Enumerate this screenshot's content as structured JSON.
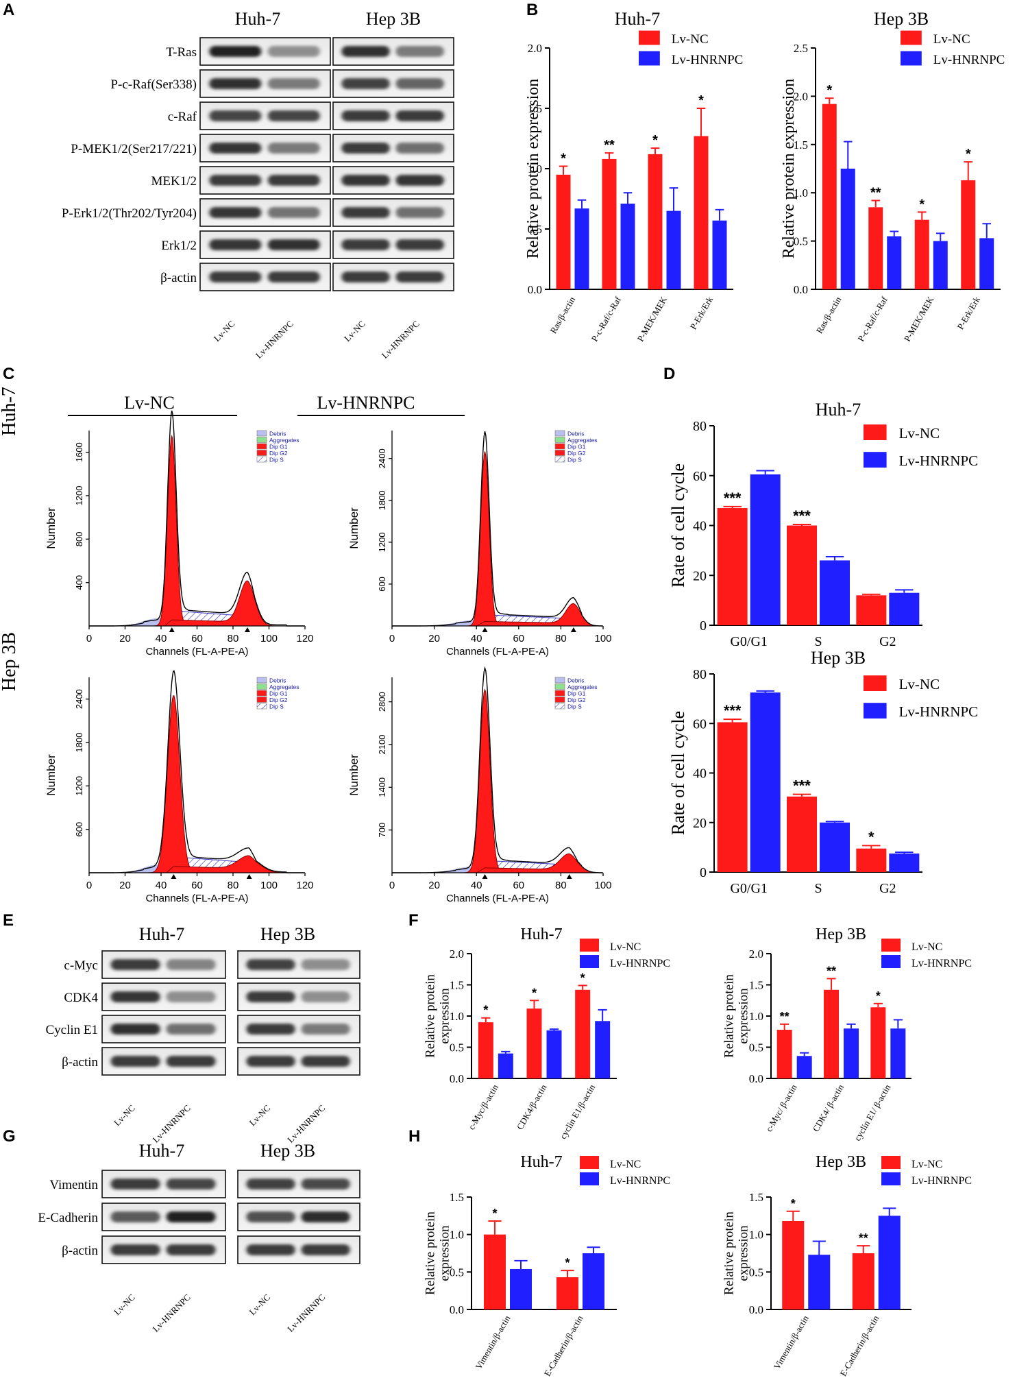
{
  "panel_letters": [
    "A",
    "B",
    "C",
    "D",
    "E",
    "F",
    "G",
    "H"
  ],
  "colors": {
    "nc": "#ff1a1a",
    "hn": "#1f1fff",
    "axis": "#000000",
    "band": "#1c1c1c",
    "hatch": "#3b3bc4",
    "debris": "#b9bfee",
    "aggr": "#8fe08f"
  },
  "blots": [
    {
      "id": "A",
      "cells": [
        "Huh-7",
        "Hep 3B"
      ],
      "lanes": [
        "Lv-NC",
        "Lv-HNRNPC"
      ],
      "rows": [
        {
          "label": "T-Ras",
          "int": [
            [
              0.98,
              0.45
            ],
            [
              0.9,
              0.55
            ]
          ]
        },
        {
          "label": "P-c-Raf(Ser338)",
          "int": [
            [
              0.9,
              0.55
            ],
            [
              0.82,
              0.65
            ]
          ]
        },
        {
          "label": "c-Raf",
          "int": [
            [
              0.8,
              0.8
            ],
            [
              0.85,
              0.85
            ]
          ]
        },
        {
          "label": "P-MEK1/2(Ser217/221)",
          "int": [
            [
              0.88,
              0.55
            ],
            [
              0.85,
              0.6
            ]
          ]
        },
        {
          "label": "MEK1/2",
          "int": [
            [
              0.85,
              0.85
            ],
            [
              0.88,
              0.88
            ]
          ]
        },
        {
          "label": "P-Erk1/2(Thr202/Tyr204)",
          "int": [
            [
              0.88,
              0.58
            ],
            [
              0.85,
              0.6
            ]
          ]
        },
        {
          "label": "Erk1/2",
          "int": [
            [
              0.88,
              0.9
            ],
            [
              0.85,
              0.85
            ]
          ]
        },
        {
          "label": "β-actin",
          "int": [
            [
              0.85,
              0.85
            ],
            [
              0.85,
              0.85
            ]
          ]
        }
      ]
    },
    {
      "id": "E",
      "cells": [
        "Huh-7",
        "Hep 3B"
      ],
      "lanes": [
        "Lv-NC",
        "Lv-HNRNPC"
      ],
      "rows": [
        {
          "label": "c-Myc",
          "int": [
            [
              0.85,
              0.5
            ],
            [
              0.82,
              0.45
            ]
          ]
        },
        {
          "label": "CDK4",
          "int": [
            [
              0.88,
              0.45
            ],
            [
              0.85,
              0.45
            ]
          ]
        },
        {
          "label": "Cyclin E1",
          "int": [
            [
              0.9,
              0.6
            ],
            [
              0.85,
              0.55
            ]
          ]
        },
        {
          "label": "β-actin",
          "int": [
            [
              0.85,
              0.85
            ],
            [
              0.85,
              0.85
            ]
          ]
        }
      ]
    },
    {
      "id": "G",
      "cells": [
        "Huh-7",
        "Hep 3B"
      ],
      "lanes": [
        "Lv-NC",
        "Lv-HNRNPC"
      ],
      "rows": [
        {
          "label": "Vimentin",
          "int": [
            [
              0.85,
              0.8
            ],
            [
              0.82,
              0.78
            ]
          ]
        },
        {
          "label": "E-Cadherin",
          "int": [
            [
              0.7,
              0.98
            ],
            [
              0.75,
              0.92
            ]
          ]
        },
        {
          "label": "β-actin",
          "int": [
            [
              0.85,
              0.85
            ],
            [
              0.85,
              0.85
            ]
          ]
        }
      ]
    }
  ],
  "flow": {
    "groups": [
      "Lv-NC",
      "Lv-HNRNPC"
    ],
    "rows": [
      "Huh-7",
      "Hep 3B"
    ],
    "ylabel": "Number",
    "xlabel": "Channels (FL-A-PE-A)",
    "legend": [
      "Debris",
      "Aggregates",
      "Dip G1",
      "Dip G2",
      "Dip S"
    ],
    "plots": [
      {
        "xmax": 120,
        "xticks": [
          0,
          20,
          40,
          60,
          80,
          100,
          120
        ],
        "ymax": 1800,
        "yticks": [
          400,
          800,
          1200,
          1600
        ],
        "peak": 1750,
        "g1": 46,
        "g2": 88,
        "g2h": 380,
        "s": 140,
        "w": 2.4
      },
      {
        "xmax": 100,
        "xticks": [
          0,
          20,
          40,
          60,
          80,
          100
        ],
        "ymax": 2800,
        "yticks": [
          600,
          1200,
          1800,
          2400
        ],
        "peak": 2500,
        "g1": 44,
        "g2": 86,
        "g2h": 280,
        "s": 160,
        "w": 2.0
      },
      {
        "xmax": 120,
        "xticks": [
          0,
          20,
          40,
          60,
          80,
          100,
          120
        ],
        "ymax": 2700,
        "yticks": [
          600,
          1200,
          1800,
          2400
        ],
        "peak": 2450,
        "g1": 47,
        "g2": 89,
        "g2h": 180,
        "s": 220,
        "w": 3.4
      },
      {
        "xmax": 100,
        "xticks": [
          0,
          20,
          40,
          60,
          80,
          100
        ],
        "ymax": 3200,
        "yticks": [
          700,
          1400,
          2100,
          2800
        ],
        "peak": 3000,
        "g1": 44,
        "g2": 84,
        "g2h": 260,
        "s": 200,
        "w": 2.4
      }
    ]
  },
  "chart_data": [
    {
      "panel": "B",
      "type": "bar",
      "title": "Huh-7",
      "ylabel": "Relative protein expression",
      "ylim": [
        0,
        2.0
      ],
      "yticks": [
        "0.0",
        "0.5",
        "1.0",
        "1.5",
        "2.0"
      ],
      "categories": [
        "Ras/β-actin",
        "P-c-Raf/c-Raf",
        "P-MEK/MEK",
        "P-Erk/Erk"
      ],
      "series": [
        {
          "name": "Lv-NC",
          "values": [
            0.95,
            1.08,
            1.12,
            1.27
          ],
          "errors": [
            0.07,
            0.05,
            0.05,
            0.23
          ]
        },
        {
          "name": "Lv-HNRNPC",
          "values": [
            0.67,
            0.71,
            0.65,
            0.57
          ],
          "errors": [
            0.07,
            0.09,
            0.19,
            0.09
          ]
        }
      ],
      "sig": [
        "*",
        "**",
        "*",
        "*"
      ]
    },
    {
      "panel": "B",
      "type": "bar",
      "title": "Hep 3B",
      "ylabel": "Relative protein expression",
      "ylim": [
        0,
        2.5
      ],
      "yticks": [
        "0.0",
        "0.5",
        "1.0",
        "1.5",
        "2.0",
        "2.5"
      ],
      "categories": [
        "Ras/β-actin",
        "P-c-Raf/c-Raf",
        "P-MEK/MEK",
        "P-Erk/Erk"
      ],
      "series": [
        {
          "name": "Lv-NC",
          "values": [
            1.92,
            0.85,
            0.72,
            1.13
          ],
          "errors": [
            0.06,
            0.07,
            0.08,
            0.19
          ]
        },
        {
          "name": "Lv-HNRNPC",
          "values": [
            1.25,
            0.55,
            0.5,
            0.53
          ],
          "errors": [
            0.28,
            0.05,
            0.08,
            0.15
          ]
        }
      ],
      "sig": [
        "*",
        "**",
        "*",
        "*"
      ]
    },
    {
      "panel": "D",
      "type": "bar",
      "title": "Huh-7",
      "ylabel": "Rate of cell cycle",
      "ylim": [
        0,
        80
      ],
      "yticks": [
        "0",
        "20",
        "40",
        "60",
        "80"
      ],
      "categories": [
        "G0/G1",
        "S",
        "G2"
      ],
      "series": [
        {
          "name": "Lv-NC",
          "values": [
            47,
            40,
            12
          ],
          "errors": [
            0.6,
            0.4,
            0.4
          ]
        },
        {
          "name": "Lv-HNRNPC",
          "values": [
            60.5,
            26,
            13
          ],
          "errors": [
            1.5,
            1.5,
            1.2
          ]
        }
      ],
      "sig": [
        "***",
        "***",
        ""
      ]
    },
    {
      "panel": "D",
      "type": "bar",
      "title": "Hep 3B",
      "ylabel": "Rate of cell cycle",
      "ylim": [
        0,
        80
      ],
      "yticks": [
        "0",
        "20",
        "40",
        "60",
        "80"
      ],
      "categories": [
        "G0/G1",
        "S",
        "G2"
      ],
      "series": [
        {
          "name": "Lv-NC",
          "values": [
            60.5,
            30.5,
            9.5
          ],
          "errors": [
            1.2,
            0.9,
            1.2
          ]
        },
        {
          "name": "Lv-HNRNPC",
          "values": [
            72.5,
            20,
            7.5
          ],
          "errors": [
            0.6,
            0.4,
            0.5
          ]
        }
      ],
      "sig": [
        "***",
        "***",
        "*"
      ]
    },
    {
      "panel": "F",
      "type": "bar",
      "title": "Huh-7",
      "ylabel": "Relative protein\nexpression",
      "ylim": [
        0,
        2.0
      ],
      "yticks": [
        "0.0",
        "0.5",
        "1.0",
        "1.5",
        "2.0"
      ],
      "categories": [
        "c-Myc/β-actin",
        "CDK4/β-actin",
        "cyclin E1/β-actin"
      ],
      "series": [
        {
          "name": "Lv-NC",
          "values": [
            0.9,
            1.12,
            1.42
          ],
          "errors": [
            0.07,
            0.13,
            0.07
          ]
        },
        {
          "name": "Lv-HNRNPC",
          "values": [
            0.4,
            0.77,
            0.92
          ],
          "errors": [
            0.03,
            0.02,
            0.18
          ]
        }
      ],
      "sig": [
        "*",
        "*",
        "*"
      ]
    },
    {
      "panel": "F",
      "type": "bar",
      "title": "Hep 3B",
      "ylabel": "Relative protein\nexpression",
      "ylim": [
        0,
        2.0
      ],
      "yticks": [
        "0.0",
        "0.5",
        "1.0",
        "1.5",
        "2.0"
      ],
      "categories": [
        "c-Myc/ β-actin",
        "CDK4/ β-actin",
        "cyclin E1/ β-actin"
      ],
      "series": [
        {
          "name": "Lv-NC",
          "values": [
            0.78,
            1.42,
            1.14
          ],
          "errors": [
            0.09,
            0.18,
            0.06
          ]
        },
        {
          "name": "Lv-HNRNPC",
          "values": [
            0.36,
            0.8,
            0.8
          ],
          "errors": [
            0.05,
            0.07,
            0.14
          ]
        }
      ],
      "sig": [
        "**",
        "**",
        "*"
      ]
    },
    {
      "panel": "H",
      "type": "bar",
      "title": "Huh-7",
      "ylabel": "Relative protein\nexpression",
      "ylim": [
        0,
        1.5
      ],
      "yticks": [
        "0.0",
        "0.5",
        "1.0",
        "1.5"
      ],
      "categories": [
        "Vimentin/β-actin",
        "E-Cadherin/β-actin"
      ],
      "series": [
        {
          "name": "Lv-NC",
          "values": [
            1.0,
            0.43
          ],
          "errors": [
            0.18,
            0.09
          ]
        },
        {
          "name": "Lv-HNRNPC",
          "values": [
            0.54,
            0.75
          ],
          "errors": [
            0.11,
            0.08
          ]
        }
      ],
      "sig": [
        "*",
        "*"
      ]
    },
    {
      "panel": "H",
      "type": "bar",
      "title": "Hep 3B",
      "ylabel": "Relative protein\nexpression",
      "ylim": [
        0,
        1.5
      ],
      "yticks": [
        "0.0",
        "0.5",
        "1.0",
        "1.5"
      ],
      "categories": [
        "Vimentin/β-actin",
        "E-Cadherin/β-actin"
      ],
      "series": [
        {
          "name": "Lv-NC",
          "values": [
            1.18,
            0.75
          ],
          "errors": [
            0.13,
            0.1
          ]
        },
        {
          "name": "Lv-HNRNPC",
          "values": [
            0.73,
            1.25
          ],
          "errors": [
            0.18,
            0.1
          ]
        }
      ],
      "sig": [
        "*",
        "**"
      ]
    }
  ]
}
